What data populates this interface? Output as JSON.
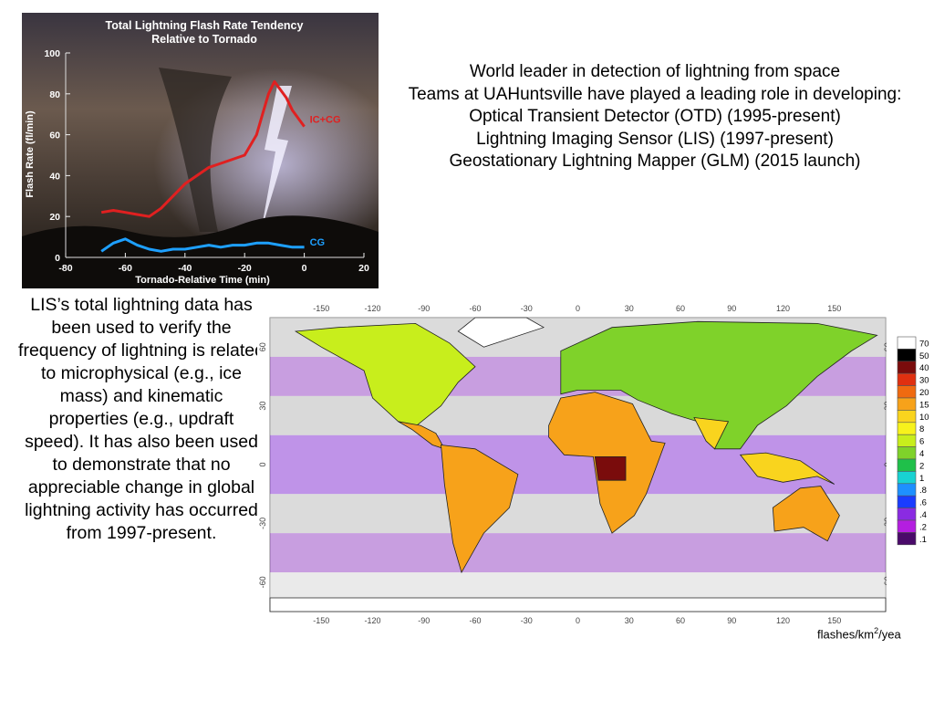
{
  "intro": {
    "lines": [
      "World leader in detection of lightning from space",
      "Teams at UAHuntsville have played a leading role in developing:",
      "Optical Transient Detector (OTD) (1995-present)",
      "Lightning Imaging Sensor (LIS) (1997-present)",
      "Geostationary Lightning Mapper (GLM) (2015 launch)"
    ]
  },
  "lis_paragraph": "LIS’s total lightning data has been used to verify the frequency of lightning is related to microphysical (e.g., ice mass) and kinematic properties (e.g., updraft speed). It has also been used to demonstrate that no appreciable change in global lightning activity has occurred from 1997-present.",
  "chart_data": [
    {
      "type": "line",
      "title": "Total Lightning Flash Rate Tendency",
      "subtitle": "Relative to Tornado",
      "xlabel": "Tornado-Relative Time (min)",
      "ylabel": "Flash Rate (fl/min)",
      "xlim": [
        -80,
        20
      ],
      "ylim": [
        0,
        100
      ],
      "xticks": [
        -80,
        -60,
        -40,
        -20,
        0,
        20
      ],
      "yticks": [
        0,
        20,
        40,
        60,
        80,
        100
      ],
      "grid": false,
      "series": [
        {
          "name": "IC+CG",
          "color": "#e02020",
          "x": [
            -68,
            -64,
            -60,
            -56,
            -52,
            -48,
            -44,
            -40,
            -36,
            -32,
            -28,
            -24,
            -20,
            -16,
            -14,
            -12,
            -10,
            -8,
            -6,
            -4,
            -2,
            0
          ],
          "y": [
            22,
            23,
            22,
            21,
            20,
            24,
            30,
            36,
            40,
            44,
            46,
            48,
            50,
            60,
            70,
            80,
            86,
            82,
            78,
            72,
            68,
            64
          ]
        },
        {
          "name": "CG",
          "color": "#1ea0ff",
          "x": [
            -68,
            -64,
            -60,
            -56,
            -52,
            -48,
            -44,
            -40,
            -36,
            -32,
            -28,
            -24,
            -20,
            -16,
            -12,
            -8,
            -4,
            0
          ],
          "y": [
            3,
            7,
            9,
            6,
            4,
            3,
            4,
            4,
            5,
            6,
            5,
            6,
            6,
            7,
            7,
            6,
            5,
            5
          ]
        }
      ]
    },
    {
      "type": "heatmap",
      "xticks": [
        -150,
        -120,
        -90,
        -60,
        -30,
        0,
        30,
        60,
        90,
        120,
        150
      ],
      "yticks": [
        60,
        30,
        0,
        -30,
        -60
      ],
      "xlim": [
        -180,
        180
      ],
      "ylim": [
        -75,
        75
      ],
      "legend": "right",
      "colorbar": {
        "unit_prefix": "flashes/km",
        "unit_sup": "2",
        "unit_suffix": "/yea",
        "levels": [
          "70",
          "50",
          "40",
          "30",
          "20",
          "15",
          "10",
          "8",
          "6",
          "4",
          "2",
          "1",
          ".8",
          ".6",
          ".4",
          ".2",
          ".1"
        ],
        "colors": [
          "#ffffff",
          "#000000",
          "#7a0c0c",
          "#e03010",
          "#f06a10",
          "#f7a21a",
          "#f9d41e",
          "#f7f21c",
          "#c8ee1c",
          "#7fd22a",
          "#1fc04a",
          "#18d2d2",
          "#1e90ff",
          "#1a3cff",
          "#8a2be2",
          "#b41ee0",
          "#4a0a6a"
        ]
      }
    }
  ]
}
